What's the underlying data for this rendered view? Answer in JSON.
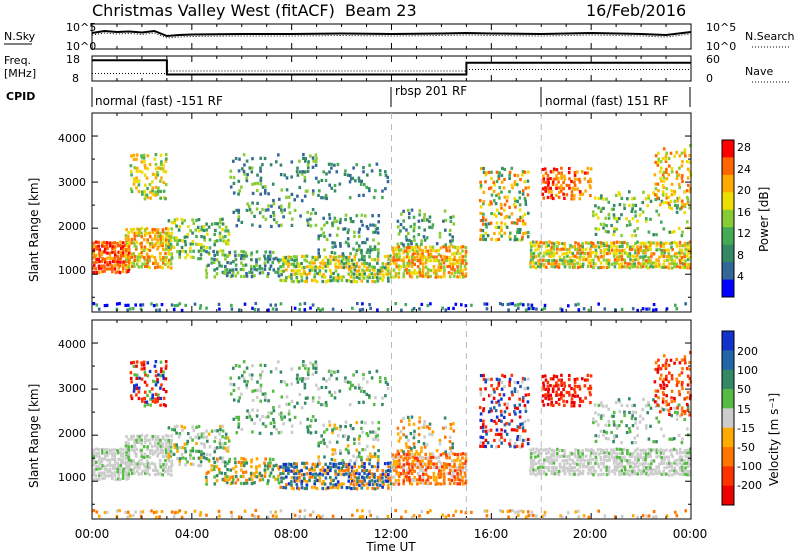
{
  "header": {
    "station": "Christmas Valley West (fitACF)",
    "beam": "Beam 23",
    "date": "16/Feb/2016"
  },
  "noise_panel": {
    "left_label": "N.Sky",
    "right_label": "N.Search",
    "ticks_left": [
      "10^5",
      "10^0"
    ],
    "ticks_right": [
      "10^5",
      "10^0"
    ]
  },
  "freq_panel": {
    "left_label_1": "Freq.",
    "left_label_2": "[MHz]",
    "right_label": "Nave",
    "ticks_left": [
      "18",
      "8"
    ],
    "ticks_right": [
      "60",
      "0"
    ]
  },
  "cpid_panel": {
    "label": "CPID",
    "segments": [
      {
        "text": "normal (fast) -151 RF",
        "start_h": 0,
        "end_h": 12
      },
      {
        "text": "rbsp 201 RF",
        "start_h": 12,
        "end_h": 18
      },
      {
        "text": "normal (fast) 151 RF",
        "start_h": 18,
        "end_h": 24
      }
    ]
  },
  "x_axis": {
    "label": "Time UT",
    "ticks": [
      "00:00",
      "04:00",
      "08:00",
      "12:00",
      "16:00",
      "20:00",
      "00:00"
    ]
  },
  "power_panel": {
    "ylabel": "Slant Range [km]",
    "yticks": [
      "4000",
      "3000",
      "2000",
      "1000"
    ],
    "colorbar_label": "Power [dB]",
    "colorbar_ticks": [
      "28",
      "24",
      "20",
      "16",
      "12",
      "8",
      "4"
    ],
    "colorbar_colors": [
      "#ff0000",
      "#ff6600",
      "#ffaa00",
      "#eedd00",
      "#88cc33",
      "#44aa55",
      "#338866",
      "#336699",
      "#0000ff"
    ]
  },
  "velocity_panel": {
    "ylabel": "Slant Range [km]",
    "yticks": [
      "4000",
      "3000",
      "2000",
      "1000"
    ],
    "colorbar_label": "Velocity [m s⁻¹]",
    "colorbar_ticks": [
      "200",
      "100",
      "50",
      "15",
      "-15",
      "-50",
      "-100",
      "-200"
    ],
    "colorbar_colors": [
      "#1133cc",
      "#2266aa",
      "#338866",
      "#55bb44",
      "#cccccc",
      "#ffaa00",
      "#ff7700",
      "#ff3300",
      "#ee0000"
    ]
  },
  "chart_data": [
    {
      "type": "line",
      "name_ref": "noise_panel",
      "x_range_hours": [
        0,
        24
      ],
      "x": [
        0,
        0.5,
        1,
        1.5,
        2,
        2.5,
        3,
        3.5,
        4,
        6,
        8,
        10,
        12,
        14,
        15,
        16,
        18,
        20,
        22,
        23,
        24
      ],
      "series": [
        {
          "values": [
            3.2,
            3.6,
            3.4,
            3.5,
            3.3,
            3.6,
            2.6,
            2.8,
            2.9,
            3.0,
            3.0,
            3.1,
            3.0,
            3.1,
            3.2,
            3.1,
            3.0,
            3.2,
            3.0,
            2.8,
            3.4
          ]
        }
      ],
      "ylim": [
        0,
        5
      ]
    },
    {
      "type": "line",
      "name_ref": "freq_panel",
      "x_range_hours": [
        0,
        24
      ],
      "x": [
        0,
        3,
        3,
        15,
        15,
        24
      ],
      "series": [
        {
          "values": [
            16.3,
            16.3,
            10.6,
            10.6,
            15.3,
            15.3
          ]
        },
        {
          "values": [
            11.0,
            11.0,
            12.0,
            12.0,
            12.6,
            12.6
          ]
        }
      ],
      "ylim": [
        8,
        18
      ]
    },
    {
      "type": "heatmap",
      "name_ref": "power_panel",
      "x_range_hours": [
        0,
        24
      ],
      "ylim_km": [
        180,
        4500
      ]
    },
    {
      "type": "heatmap",
      "name_ref": "velocity_panel",
      "x_range_hours": [
        0,
        24
      ],
      "ylim_km": [
        180,
        4500
      ]
    }
  ]
}
